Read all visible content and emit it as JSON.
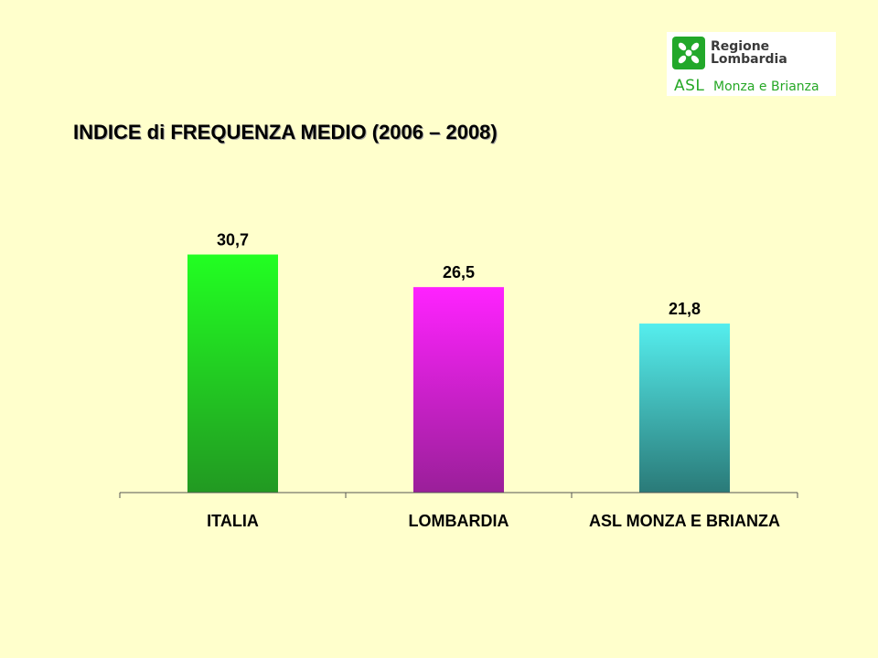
{
  "logo": {
    "line1": "Regione",
    "line2": "Lombardia",
    "asl": "ASL",
    "subtitle": "Monza e Brianza"
  },
  "chart_data": {
    "type": "bar",
    "title": "INDICE di FREQUENZA MEDIO (2006 – 2008)",
    "categories": [
      "ITALIA",
      "LOMBARDIA",
      "ASL MONZA E BRIANZA"
    ],
    "values": [
      30.7,
      26.5,
      21.8
    ],
    "value_labels": [
      "30,7",
      "26,5",
      "21,8"
    ],
    "colors": [
      {
        "top": "#22ff22",
        "bottom": "#229922"
      },
      {
        "top": "#ff22ff",
        "bottom": "#9a1f99"
      },
      {
        "top": "#55eeee",
        "bottom": "#2a7a78"
      }
    ],
    "ylim": [
      0,
      33
    ],
    "grid": false,
    "xlabel": "",
    "ylabel": ""
  }
}
